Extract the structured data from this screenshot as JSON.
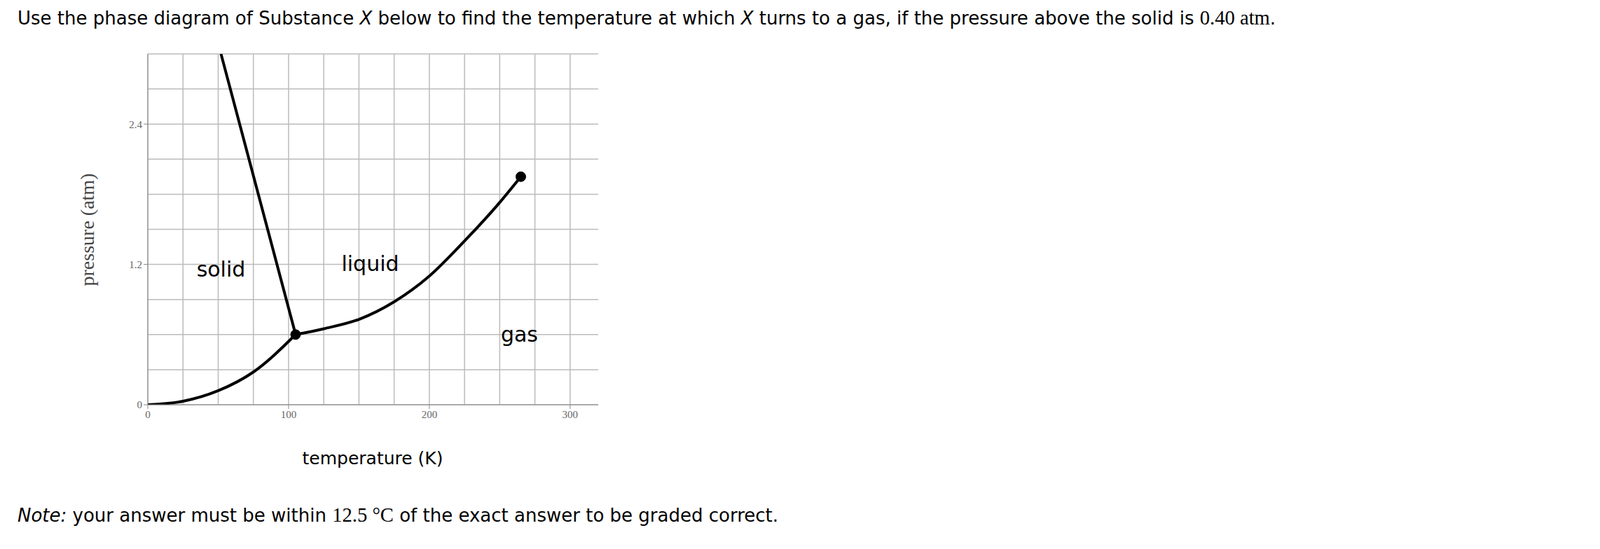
{
  "chart_data": {
    "type": "line",
    "title": "Use the phase diagram of Substance X below to find the temperature at which X turns to a gas, if the pressure above the solid is 0.40 atm.",
    "x_label": "temperature (K)",
    "y_label": "pressure (atm)",
    "xlim": [
      0,
      320
    ],
    "ylim": [
      0,
      3
    ],
    "xticks": [
      0,
      100,
      200,
      300
    ],
    "yticks": [
      0,
      1.2,
      2.4
    ],
    "grid": true,
    "series": [
      {
        "color": "#000000",
        "x": [
          0,
          25,
          50,
          75,
          105
        ],
        "values": [
          0,
          0.03,
          0.12,
          0.28,
          0.6
        ]
      },
      {
        "color": "#000000",
        "x": [
          52,
          105
        ],
        "values": [
          3.0,
          0.6
        ]
      },
      {
        "color": "#000000",
        "x": [
          105,
          125,
          150,
          175,
          200,
          225,
          250,
          265
        ],
        "values": [
          0.6,
          0.65,
          0.73,
          0.88,
          1.1,
          1.4,
          1.73,
          1.95
        ]
      }
    ],
    "markers": [
      {
        "x": 105,
        "y": 0.6
      },
      {
        "x": 265,
        "y": 1.95
      }
    ],
    "annotations": [
      {
        "text": "solid",
        "x": 52,
        "y": 1.16
      },
      {
        "text": "liquid",
        "x": 158,
        "y": 1.21
      },
      {
        "text": "gas",
        "x": 264,
        "y": 0.6
      }
    ],
    "note": "Note: your answer must be within 12.5 °C of the exact answer to be graded correct."
  }
}
